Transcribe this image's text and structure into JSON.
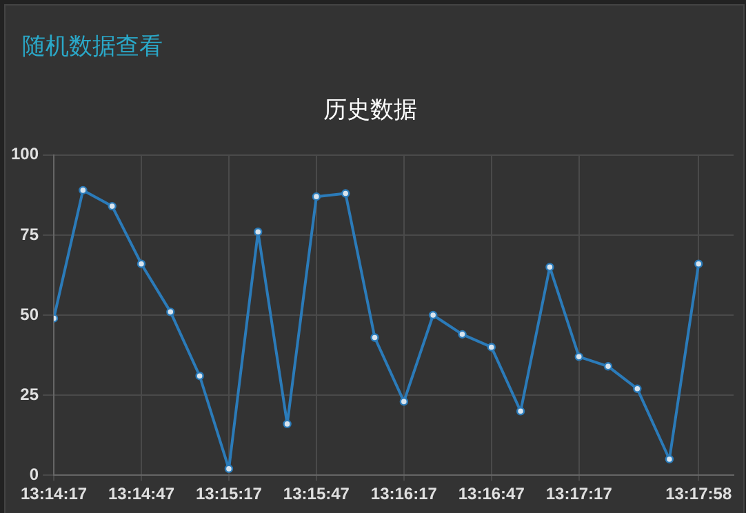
{
  "chart_data": {
    "type": "line",
    "title": "历史数据",
    "annotations": [
      "随机数据查看"
    ],
    "x": [
      13.238056,
      13.240833,
      13.243611,
      13.246389,
      13.249167,
      13.251944,
      13.254722,
      13.2575,
      13.260278,
      13.263056,
      13.265833,
      13.268611,
      13.271389,
      13.274167,
      13.276944,
      13.279722,
      13.2825,
      13.285278,
      13.288056,
      13.290833,
      13.293611,
      13.296667,
      13.299444
    ],
    "series": [
      {
        "color": "#2b7bb9",
        "values": [
          49,
          89,
          84,
          66,
          51,
          31,
          2,
          76,
          16,
          87,
          88,
          43,
          23,
          50,
          44,
          40,
          20,
          65,
          37,
          34,
          27,
          5,
          66
        ]
      }
    ],
    "xlim": [
      13.238056,
      13.302778
    ],
    "xticks": [
      {
        "value": 13.238056,
        "label": "13:14:17"
      },
      {
        "value": 13.246389,
        "label": "13:14:47"
      },
      {
        "value": 13.254722,
        "label": "13:15:17"
      },
      {
        "value": 13.263056,
        "label": "13:15:47"
      },
      {
        "value": 13.271389,
        "label": "13:16:17"
      },
      {
        "value": 13.279722,
        "label": "13:16:47"
      },
      {
        "value": 13.288056,
        "label": "13:17:17"
      },
      {
        "value": 13.299444,
        "label": "13:17:58"
      }
    ],
    "ylim": [
      0,
      100
    ],
    "yticks": [
      0,
      25,
      50,
      75,
      100
    ],
    "grid": true,
    "legend": false,
    "marker": "circle",
    "line_style": "solid"
  }
}
